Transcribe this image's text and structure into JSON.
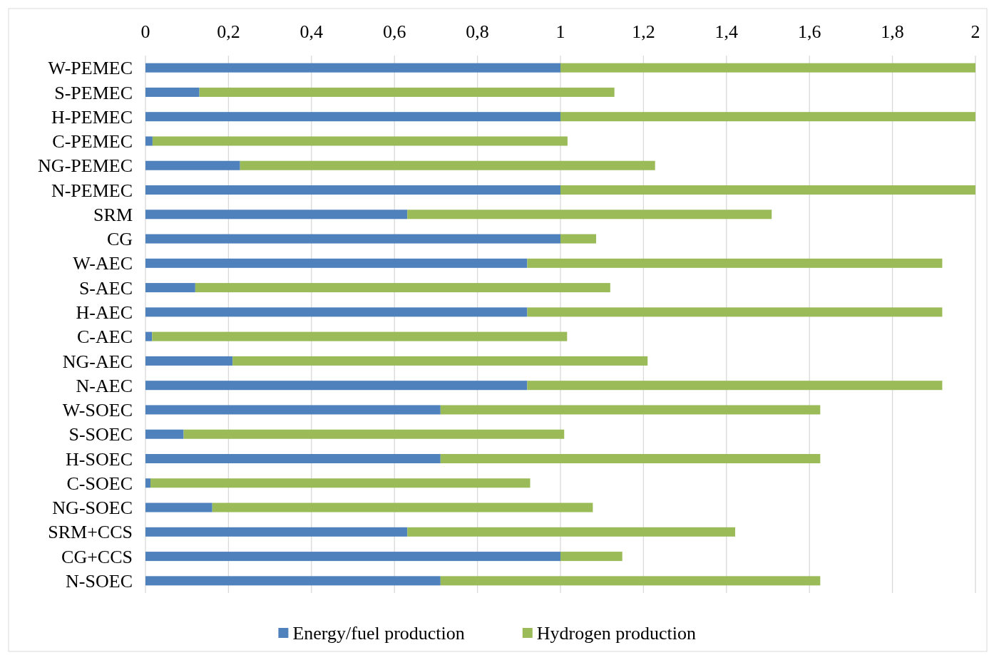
{
  "chart_data": {
    "type": "bar",
    "orientation": "horizontal",
    "stacked": true,
    "categories": [
      "W-PEMEC",
      "S-PEMEC",
      "H-PEMEC",
      "C-PEMEC",
      "NG-PEMEC",
      "N-PEMEC",
      "SRM",
      "CG",
      "W-AEC",
      "S-AEC",
      "H-AEC",
      "C-AEC",
      "NG-AEC",
      "N-AEC",
      "W-SOEC",
      "S-SOEC",
      "H-SOEC",
      "C-SOEC",
      "NG-SOEC",
      "SRM+CCS",
      "CG+CCS",
      "N-SOEC"
    ],
    "series": [
      {
        "name": "Energy/fuel production",
        "color": "#4f81bd",
        "values": [
          1.0,
          0.13,
          1.0,
          0.017,
          0.228,
          1.0,
          0.631,
          1.0,
          0.92,
          0.12,
          0.92,
          0.016,
          0.21,
          0.92,
          0.711,
          0.092,
          0.711,
          0.012,
          0.161,
          0.631,
          1.0,
          0.711
        ]
      },
      {
        "name": "Hydrogen production",
        "color": "#9bbb59",
        "values": [
          1.0,
          1.0,
          1.0,
          1.0,
          1.0,
          1.0,
          0.878,
          0.086,
          1.0,
          1.0,
          1.0,
          1.0,
          1.0,
          1.0,
          0.915,
          0.917,
          0.915,
          0.915,
          0.917,
          0.79,
          0.149,
          0.915
        ]
      }
    ],
    "xlim": [
      0,
      2
    ],
    "xticks": [
      0,
      {
        "value": 0.2,
        "label": "0,2"
      },
      {
        "value": 0.4,
        "label": "0,4"
      },
      {
        "value": 0.6,
        "label": "0,6"
      },
      {
        "value": 0.8,
        "label": "0,8"
      },
      1,
      {
        "value": 1.2,
        "label": "1,2"
      },
      {
        "value": 1.4,
        "label": "1,4"
      },
      {
        "value": 1.6,
        "label": "1,6"
      },
      {
        "value": 1.8,
        "label": "1,8"
      },
      2
    ],
    "grid": "x",
    "legend": "bottom"
  }
}
